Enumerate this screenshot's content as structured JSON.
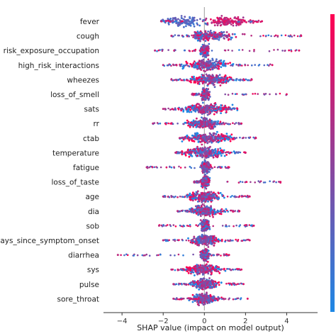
{
  "chart_data": {
    "type": "scatter",
    "subtype": "shap-beeswarm",
    "xlabel": "SHAP value (impact on model output)",
    "xlim": [
      -4.9,
      5.5
    ],
    "xticks": [
      -4,
      -2,
      0,
      2,
      4
    ],
    "grid": false,
    "colorbar": {
      "low_color": "#1E88E5",
      "high_color": "#FF0052",
      "placement": "right"
    },
    "features": [
      {
        "label": "fever",
        "min": -2.1,
        "max": 2.8,
        "shape": "bimodal",
        "lo": -1.0,
        "hi": 1.2
      },
      {
        "label": "cough",
        "min": -1.6,
        "max": 4.7,
        "shape": "skewed",
        "lo": -0.1,
        "hi": 1.0
      },
      {
        "label": "risk_exposure_occupation",
        "min": -2.4,
        "max": 4.6,
        "shape": "narrow",
        "lo": -0.15,
        "hi": 0.2
      },
      {
        "label": "high_risk_interactions",
        "min": -2.0,
        "max": 3.3,
        "shape": "center",
        "lo": -0.4,
        "hi": 0.6
      },
      {
        "label": "wheezes",
        "min": -1.6,
        "max": 2.3,
        "shape": "center",
        "lo": -0.1,
        "hi": 0.8
      },
      {
        "label": "loss_of_smell",
        "min": -0.6,
        "max": 4.0,
        "shape": "narrow",
        "lo": -0.2,
        "hi": 0.3
      },
      {
        "label": "sats",
        "min": -2.0,
        "max": 1.6,
        "shape": "center",
        "lo": -0.4,
        "hi": 0.6
      },
      {
        "label": "rr",
        "min": -2.5,
        "max": 1.8,
        "shape": "center",
        "lo": -0.3,
        "hi": 0.3
      },
      {
        "label": "ctab",
        "min": -1.2,
        "max": 2.5,
        "shape": "center",
        "lo": -0.3,
        "hi": 0.7
      },
      {
        "label": "temperature",
        "min": -1.4,
        "max": 2.0,
        "shape": "center",
        "lo": -0.4,
        "hi": 0.5
      },
      {
        "label": "fatigue",
        "min": -2.8,
        "max": 1.2,
        "shape": "narrow",
        "lo": -0.1,
        "hi": 0.2
      },
      {
        "label": "loss_of_taste",
        "min": -0.5,
        "max": 3.7,
        "shape": "narrow",
        "lo": -0.1,
        "hi": 0.2
      },
      {
        "label": "age",
        "min": -2.0,
        "max": 2.2,
        "shape": "center",
        "lo": -0.3,
        "hi": 0.3
      },
      {
        "label": "dia",
        "min": -1.3,
        "max": 1.7,
        "shape": "center",
        "lo": -0.3,
        "hi": 0.3
      },
      {
        "label": "sob",
        "min": -2.2,
        "max": 2.4,
        "shape": "narrow",
        "lo": -0.1,
        "hi": 0.15
      },
      {
        "label": "days_since_symptom_onset",
        "min": -2.0,
        "max": 2.2,
        "shape": "center",
        "lo": -0.2,
        "hi": 0.3
      },
      {
        "label": "diarrhea",
        "min": -4.2,
        "max": 1.2,
        "shape": "narrow",
        "lo": -0.1,
        "hi": 0.15
      },
      {
        "label": "sys",
        "min": -1.6,
        "max": 1.8,
        "shape": "center",
        "lo": -0.3,
        "hi": 0.3
      },
      {
        "label": "pulse",
        "min": -1.5,
        "max": 1.9,
        "shape": "center",
        "lo": -0.2,
        "hi": 0.2
      },
      {
        "label": "sore_throat",
        "min": -1.5,
        "max": 2.1,
        "shape": "center",
        "lo": -0.2,
        "hi": 0.2
      }
    ]
  }
}
